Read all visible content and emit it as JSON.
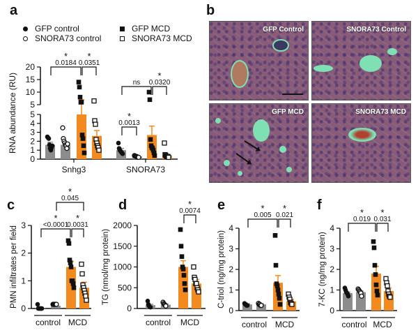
{
  "panel_labels": {
    "a": "a",
    "b": "b",
    "c": "c",
    "d": "d",
    "e": "e",
    "f": "f"
  },
  "legend": [
    {
      "label": "GFP control",
      "marker": "filled-circle"
    },
    {
      "label": "SNORA73 control",
      "marker": "open-circle"
    },
    {
      "label": "GFP MCD",
      "marker": "filled-square"
    },
    {
      "label": "SNORA73 MCD",
      "marker": "open-square"
    }
  ],
  "colors": {
    "control_bar": "#8c8c8c",
    "mcd_bar": "#f28a1f",
    "marker": "#111111"
  },
  "histology": {
    "tiles": [
      "GFP Control",
      "SNORA73 Control",
      "GFP MCD",
      "SNORA73 MCD"
    ]
  },
  "chart_data": [
    {
      "id": "a",
      "type": "bar",
      "ylabel": "RNA abundance (RU)",
      "broken_axis": {
        "lower": [
          0,
          5
        ],
        "upper": [
          5,
          20
        ]
      },
      "yticks_lower": [
        "0",
        "1",
        "2",
        "3",
        "4",
        "5"
      ],
      "yticks_upper": [
        "5",
        "10",
        "15",
        "20"
      ],
      "categories": [
        "Snhg3",
        "SNORA73"
      ],
      "series": [
        {
          "name": "GFP control",
          "gene": "Snhg3",
          "mean": 1.6,
          "sem_top": 1.9,
          "points": [
            2.5,
            2.4,
            2.3,
            1.6,
            1.2,
            1.0,
            1.3,
            1.5
          ]
        },
        {
          "name": "SNORA73 control",
          "gene": "Snhg3",
          "mean": 1.6,
          "sem_top": 1.8,
          "points": [
            3.5,
            2.3,
            2.0,
            1.8,
            1.6,
            1.5,
            1.2,
            1.7
          ]
        },
        {
          "name": "GFP MCD",
          "gene": "Snhg3",
          "mean": 5.0,
          "sem_top": 7.0,
          "points": [
            14,
            12,
            8,
            6,
            6,
            2.7,
            2.3,
            1.5,
            0.7
          ]
        },
        {
          "name": "SNORA73 MCD",
          "gene": "Snhg3",
          "mean": 2.6,
          "sem_top": 3.2,
          "points": [
            6.5,
            4.3,
            3.9,
            2.2,
            1.8,
            1.5,
            1.3,
            1.0
          ]
        },
        {
          "name": "GFP control",
          "gene": "SNORA73",
          "mean": 1.0,
          "sem_top": 1.2,
          "points": [
            1.8,
            1.2,
            1.0,
            0.9,
            0.8,
            0.7,
            0.6
          ]
        },
        {
          "name": "SNORA73 control",
          "gene": "SNORA73",
          "mean": 0.3,
          "sem_top": 0.35,
          "points": [
            0.4,
            0.35,
            0.3,
            0.3,
            0.25,
            0.2,
            0.2
          ]
        },
        {
          "name": "GFP MCD",
          "gene": "SNORA73",
          "mean": 2.7,
          "sem_top": 3.7,
          "points": [
            10,
            7,
            2.2,
            1.5,
            1.3,
            1.2,
            1.0,
            0.7,
            0.4
          ]
        },
        {
          "name": "SNORA73 MCD",
          "gene": "SNORA73",
          "mean": 0.4,
          "sem_top": 0.5,
          "points": [
            1.8,
            0.5,
            0.4,
            0.3,
            0.3,
            0.3,
            0.2
          ]
        }
      ],
      "comparisons": [
        {
          "from": 0,
          "to": 2,
          "star": "*",
          "p": "0.0184"
        },
        {
          "from": 2,
          "to": 3,
          "star": "*",
          "p": "0.0351"
        },
        {
          "from": 4,
          "to": 6,
          "star": "",
          "p": "ns"
        },
        {
          "from": 6,
          "to": 7,
          "star": "*",
          "p": "0.0320"
        },
        {
          "from": 4,
          "to": 5,
          "star": "*",
          "p": "0.0013"
        }
      ]
    },
    {
      "id": "c",
      "type": "bar",
      "ylabel": "PMN infiltrates per field",
      "ylim": [
        0,
        3
      ],
      "yticks": [
        "0",
        "1",
        "2",
        "3"
      ],
      "groups": [
        "control",
        "MCD"
      ],
      "series": [
        {
          "name": "GFP control",
          "mean": 0.02,
          "sem_top": 0.03,
          "points": [
            0.15,
            0,
            0,
            0,
            0,
            0,
            0
          ]
        },
        {
          "name": "SNORA73 control",
          "mean": 0.1,
          "sem_top": 0.12,
          "points": [
            0.15,
            0.15,
            0.15,
            0.15,
            0.15,
            0.15
          ]
        },
        {
          "name": "GFP MCD",
          "mean": 1.5,
          "sem_top": 1.7,
          "points": [
            2.45,
            2.35,
            1.75,
            1.65,
            1.5,
            1.0,
            1.0,
            0.9,
            0.75
          ]
        },
        {
          "name": "SNORA73 MCD",
          "mean": 0.75,
          "sem_top": 0.95,
          "points": [
            1.6,
            1.25,
            0.85,
            0.75,
            0.65,
            0.55,
            0.45,
            0.3
          ]
        }
      ],
      "comparisons": [
        {
          "from": 0,
          "to": 2,
          "star": "*",
          "p": "<0.0001"
        },
        {
          "from": 2,
          "to": 3,
          "star": "*",
          "p": "0.0031"
        },
        {
          "from": 1,
          "to": 3,
          "star": "*",
          "p": "0.045"
        }
      ]
    },
    {
      "id": "d",
      "type": "bar",
      "ylabel": "TG (nmol/mg protein)",
      "ylim": [
        0,
        2000
      ],
      "yticks": [
        "0",
        "500",
        "1000",
        "1500",
        "2000"
      ],
      "groups": [
        "control",
        "MCD"
      ],
      "series": [
        {
          "name": "GFP control",
          "mean": 80,
          "sem_top": 100,
          "points": [
            180,
            100,
            60,
            40,
            30
          ]
        },
        {
          "name": "SNORA73 control",
          "mean": 90,
          "sem_top": 110,
          "points": [
            150,
            120,
            100,
            80,
            60
          ]
        },
        {
          "name": "GFP MCD",
          "mean": 1000,
          "sem_top": 1150,
          "points": [
            1900,
            1500,
            1250,
            1000,
            950,
            800,
            600,
            450
          ]
        },
        {
          "name": "SNORA73 MCD",
          "mean": 600,
          "sem_top": 700,
          "points": [
            1000,
            750,
            700,
            600,
            600,
            500,
            450,
            400
          ]
        }
      ],
      "comparisons": [
        {
          "from": 2,
          "to": 3,
          "star": "*",
          "p": "0.0074"
        }
      ]
    },
    {
      "id": "e",
      "type": "bar",
      "ylabel": "C-triol (ng/mg protein)",
      "ylim": [
        0,
        4
      ],
      "yticks": [
        "0",
        "1",
        "2",
        "3",
        "4"
      ],
      "groups": [
        "control",
        "MCD"
      ],
      "series": [
        {
          "name": "GFP control",
          "mean": 0.3,
          "sem_top": 0.33,
          "points": [
            0.35,
            0.3,
            0.3,
            0.25,
            0.25
          ]
        },
        {
          "name": "SNORA73 control",
          "mean": 0.3,
          "sem_top": 0.33,
          "points": [
            0.35,
            0.3,
            0.3,
            0.25,
            0.25
          ]
        },
        {
          "name": "GFP MCD",
          "mean": 1.35,
          "sem_top": 1.7,
          "points": [
            3.65,
            2.2,
            1.3,
            1.2,
            1.0,
            0.8,
            0.6,
            0.3
          ]
        },
        {
          "name": "SNORA73 MCD",
          "mean": 0.45,
          "sem_top": 0.55,
          "points": [
            0.8,
            0.65,
            0.55,
            0.4,
            0.35,
            0.3
          ]
        }
      ],
      "comparisons": [
        {
          "from": 0,
          "to": 2,
          "star": "*",
          "p": "0.005"
        },
        {
          "from": 2,
          "to": 3,
          "star": "*",
          "p": "0.021"
        }
      ]
    },
    {
      "id": "f",
      "type": "bar",
      "ylabel": "7-KC (ng/mg protein)",
      "ylim": [
        0,
        4
      ],
      "yticks": [
        "0",
        "1",
        "2",
        "3",
        "4"
      ],
      "groups": [
        "control",
        "MCD"
      ],
      "series": [
        {
          "name": "GFP control",
          "mean": 0.85,
          "sem_top": 0.9,
          "points": [
            1.1,
            1.0,
            0.9,
            0.85,
            0.8,
            0.7
          ]
        },
        {
          "name": "SNORA73 control",
          "mean": 0.9,
          "sem_top": 0.95,
          "points": [
            1.05,
            1.0,
            0.95,
            0.9,
            0.85,
            0.7
          ]
        },
        {
          "name": "GFP MCD",
          "mean": 1.8,
          "sem_top": 2.15,
          "points": [
            3.35,
            3.05,
            2.2,
            1.75,
            1.25,
            0.95,
            0.75
          ]
        },
        {
          "name": "SNORA73 MCD",
          "mean": 0.95,
          "sem_top": 1.1,
          "points": [
            1.55,
            1.35,
            1.2,
            0.95,
            0.8,
            0.7,
            0.65
          ]
        }
      ],
      "comparisons": [
        {
          "from": 0,
          "to": 2,
          "star": "*",
          "p": "0.019"
        },
        {
          "from": 2,
          "to": 3,
          "star": "*",
          "p": "0.031"
        }
      ]
    }
  ]
}
